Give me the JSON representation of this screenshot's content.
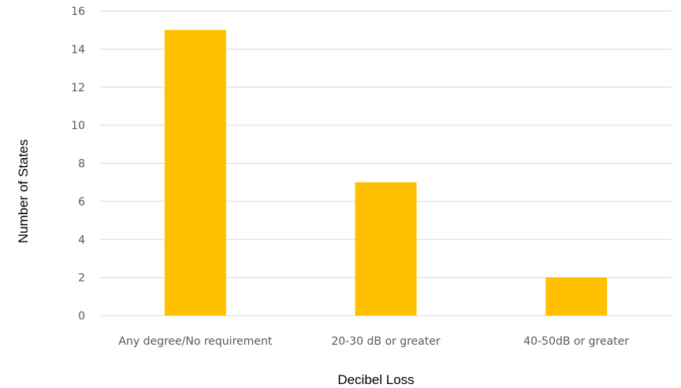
{
  "chart_data": {
    "type": "bar",
    "categories": [
      "Any degree/No requirement",
      "20-30 dB or greater",
      "40-50dB or greater"
    ],
    "values": [
      15,
      7,
      2
    ],
    "title": "",
    "xlabel": "Decibel Loss",
    "ylabel": "Number of States",
    "ylim": [
      0,
      16
    ],
    "yticks": [
      0,
      2,
      4,
      6,
      8,
      10,
      12,
      14,
      16
    ],
    "grid": true,
    "legend": "none",
    "bar_color": "#FFC000"
  }
}
